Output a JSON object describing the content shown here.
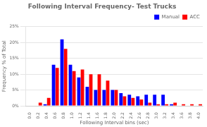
{
  "chart_data": {
    "type": "bar",
    "title": "Following Interval Frequency- Test Trucks",
    "xlabel": "Following Interval bins (sec)",
    "ylabel": "Frequency % of Total",
    "categories": [
      "0.0",
      "0.2",
      "0.4",
      "0.6",
      "0.8",
      "1.0",
      "1.2",
      "1.4",
      "1.6",
      "1.8",
      "2.0",
      "2.2",
      "2.4",
      "2.6",
      "2.8",
      "3.0",
      "3.2",
      "3.4",
      "3.6",
      "3.8",
      "4.0"
    ],
    "series": [
      {
        "name": "Manual",
        "color": "#0000ff",
        "values": [
          0.0,
          0.0,
          0.5,
          13.0,
          21.0,
          13.0,
          9.0,
          6.0,
          5.0,
          5.0,
          5.0,
          4.0,
          3.5,
          3.0,
          3.5,
          3.5,
          3.5,
          0.5,
          0.0,
          0.0,
          0.0
        ]
      },
      {
        "name": "ACC",
        "color": "#ff0000",
        "values": [
          0.0,
          1.0,
          2.5,
          12.0,
          18.0,
          11.0,
          11.5,
          10.0,
          10.0,
          8.0,
          5.0,
          3.0,
          2.5,
          2.0,
          1.0,
          0.5,
          0.5,
          1.0,
          0.5,
          0.5,
          0.5
        ]
      }
    ],
    "ylim": [
      0,
      25
    ],
    "yticks": [
      {
        "value": 0,
        "label": "0%"
      },
      {
        "value": 5,
        "label": "5%"
      },
      {
        "value": 10,
        "label": "10%"
      },
      {
        "value": 15,
        "label": "15%"
      },
      {
        "value": 20,
        "label": "20%"
      },
      {
        "value": 25,
        "label": "25%"
      }
    ],
    "grid": true,
    "legend": "upper right"
  }
}
